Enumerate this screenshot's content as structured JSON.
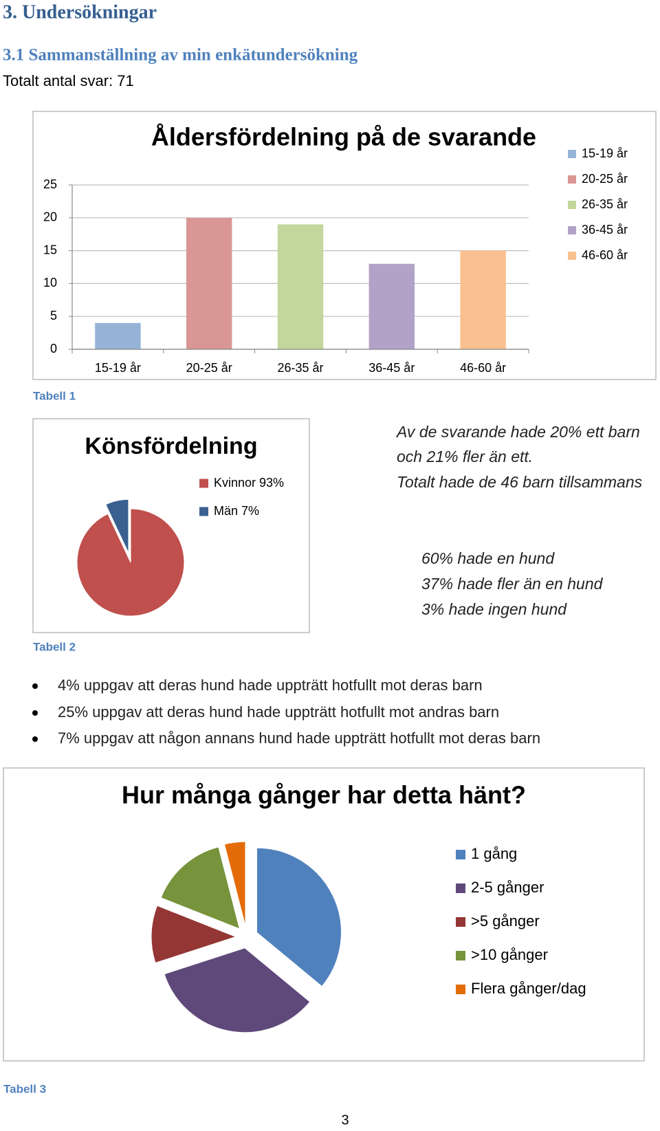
{
  "heading": "3. Undersökningar",
  "subheading": "3.1 Sammanställning av min enkätundersökning",
  "intro": "Totalt antal svar: 71",
  "chart_data": [
    {
      "type": "bar",
      "title": "Åldersfördelning på de svarande",
      "categories": [
        "15-19 år",
        "20-25 år",
        "26-35 år",
        "36-45 år",
        "46-60 år"
      ],
      "values": [
        4,
        20,
        19,
        13,
        15
      ],
      "colors": [
        "#95b3d7",
        "#d99694",
        "#c3d69b",
        "#b2a2c7",
        "#fac090"
      ],
      "ylim": [
        0,
        25
      ],
      "yticks": [
        0,
        5,
        10,
        15,
        20,
        25
      ],
      "grid": true,
      "legend": "right"
    },
    {
      "type": "pie",
      "title": "Könsfördelning",
      "categories": [
        "Kvinnor 93%",
        "Män 7%"
      ],
      "values": [
        93,
        7
      ],
      "colors": [
        "#c0504d",
        "#3a6090"
      ],
      "legend": "right"
    },
    {
      "type": "pie",
      "title": "Hur många gånger har detta hänt?",
      "categories": [
        "1 gång",
        "2-5 gånger",
        ">5 gånger",
        ">10 gånger",
        "Flera gånger/dag"
      ],
      "values": [
        36,
        34,
        11,
        15,
        4
      ],
      "colors": [
        "#4f81bd",
        "#5f497a",
        "#943634",
        "#77933c",
        "#e36c09"
      ],
      "legend": "right"
    }
  ],
  "captions": [
    "Tabell 1",
    "Tabell 2",
    "Tabell 3"
  ],
  "notes": [
    "Av de svarande hade 20% ett barn",
    "och 21% fler än ett.",
    "Totalt hade de 46 barn tillsammans",
    "60% hade en hund",
    "37% hade fler än en hund",
    "3% hade ingen hund"
  ],
  "bullets": [
    "4% uppgav att deras hund hade uppträtt hotfullt mot deras barn",
    "25% uppgav att deras hund hade uppträtt hotfullt mot andras barn",
    "7% uppgav att någon annans hund hade uppträtt hotfullt mot deras barn"
  ],
  "page_number": "3"
}
